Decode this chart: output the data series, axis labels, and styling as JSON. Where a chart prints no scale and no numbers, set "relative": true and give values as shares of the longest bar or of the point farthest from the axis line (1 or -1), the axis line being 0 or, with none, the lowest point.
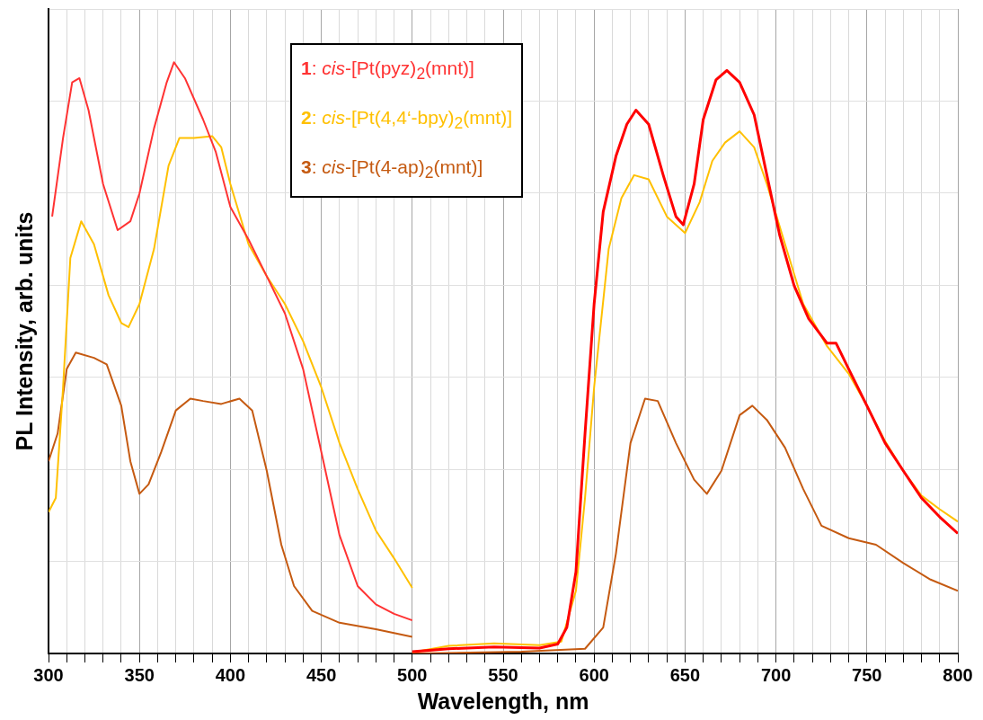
{
  "chart_data": {
    "type": "line",
    "relative": true,
    "xlabel": "Wavelength, nm",
    "ylabel": "PL Intensity, arb. units",
    "xlim": [
      300,
      800
    ],
    "xticks": [
      300,
      {
        "value": 310,
        "label": null
      },
      {
        "value": 320,
        "label": null
      },
      {
        "value": 330,
        "label": null
      },
      {
        "value": 340,
        "label": null
      },
      350,
      {
        "value": 360,
        "label": null
      },
      {
        "value": 370,
        "label": null
      },
      {
        "value": 380,
        "label": null
      },
      {
        "value": 390,
        "label": null
      },
      400,
      {
        "value": 410,
        "label": null
      },
      {
        "value": 420,
        "label": null
      },
      {
        "value": 430,
        "label": null
      },
      {
        "value": 440,
        "label": null
      },
      450,
      {
        "value": 460,
        "label": null
      },
      {
        "value": 470,
        "label": null
      },
      {
        "value": 480,
        "label": null
      },
      {
        "value": 490,
        "label": null
      },
      500,
      {
        "value": 510,
        "label": null
      },
      {
        "value": 520,
        "label": null
      },
      {
        "value": 530,
        "label": null
      },
      {
        "value": 540,
        "label": null
      },
      550,
      {
        "value": 560,
        "label": null
      },
      {
        "value": 570,
        "label": null
      },
      {
        "value": 580,
        "label": null
      },
      {
        "value": 590,
        "label": null
      },
      600,
      {
        "value": 610,
        "label": null
      },
      {
        "value": 620,
        "label": null
      },
      {
        "value": 630,
        "label": null
      },
      {
        "value": 640,
        "label": null
      },
      650,
      {
        "value": 660,
        "label": null
      },
      {
        "value": 670,
        "label": null
      },
      {
        "value": 680,
        "label": null
      },
      {
        "value": 690,
        "label": null
      },
      700,
      {
        "value": 710,
        "label": null
      },
      {
        "value": 720,
        "label": null
      },
      {
        "value": 730,
        "label": null
      },
      {
        "value": 740,
        "label": null
      },
      750,
      {
        "value": 760,
        "label": null
      },
      {
        "value": 770,
        "label": null
      },
      {
        "value": 780,
        "label": null
      },
      {
        "value": 790,
        "label": null
      },
      800
    ],
    "tick_labels": "x",
    "grid": true,
    "legend": "top",
    "marker": "none",
    "line_style": "solid",
    "series": [
      {
        "name": "1: cis-[Pt(pyz)$_{2}$(mnt)]",
        "color": "#ff3333",
        "x": [
          302,
          308,
          313,
          317,
          322,
          330,
          338,
          345,
          350,
          358,
          365,
          369,
          375,
          385,
          392,
          400,
          410,
          420,
          430,
          440,
          450,
          460,
          470,
          480,
          490,
          500
        ],
        "values": [
          0.739,
          0.872,
          0.966,
          0.973,
          0.919,
          0.794,
          0.716,
          0.731,
          0.778,
          0.888,
          0.966,
          1.0,
          0.973,
          0.903,
          0.848,
          0.755,
          0.7,
          0.638,
          0.575,
          0.481,
          0.341,
          0.2,
          0.114,
          0.083,
          0.067,
          0.056
        ]
      },
      {
        "name": "2: cis-[Pt(4,4‘-bpy)$_{2}$(mnt)]",
        "color": "#ffc000",
        "x": [
          300,
          304,
          308,
          312,
          318,
          325,
          333,
          340,
          344,
          350,
          358,
          366,
          372,
          380,
          390,
          395,
          400,
          410,
          420,
          430,
          440,
          450,
          460,
          470,
          480,
          490,
          500
        ],
        "values": [
          0.239,
          0.263,
          0.45,
          0.669,
          0.731,
          0.692,
          0.606,
          0.559,
          0.552,
          0.591,
          0.684,
          0.825,
          0.872,
          0.872,
          0.875,
          0.856,
          0.794,
          0.692,
          0.638,
          0.591,
          0.528,
          0.45,
          0.356,
          0.278,
          0.208,
          0.161,
          0.111
        ]
      },
      {
        "name": "3: cis-[Pt(4-ap)$_{2}$(mnt)]",
        "color": "#c55a11",
        "x": [
          300,
          305,
          310,
          315,
          325,
          332,
          340,
          345,
          350,
          355,
          362,
          370,
          378,
          385,
          395,
          405,
          412,
          420,
          428,
          435,
          445,
          460,
          480,
          500
        ],
        "values": [
          0.325,
          0.372,
          0.481,
          0.509,
          0.5,
          0.489,
          0.419,
          0.325,
          0.27,
          0.286,
          0.341,
          0.411,
          0.431,
          0.427,
          0.422,
          0.431,
          0.411,
          0.309,
          0.184,
          0.114,
          0.072,
          0.052,
          0.041,
          0.028
        ]
      },
      {
        "color": "#ff0000",
        "x": [
          500,
          520,
          545,
          570,
          580,
          585,
          590,
          595,
          600,
          605,
          612,
          618,
          623,
          630,
          638,
          645,
          649,
          655,
          660,
          667,
          673,
          680,
          688,
          695,
          702,
          710,
          718,
          728,
          733,
          740,
          750,
          760,
          770,
          780,
          790,
          800
        ],
        "values": [
          0.003,
          0.008,
          0.011,
          0.009,
          0.016,
          0.044,
          0.138,
          0.372,
          0.591,
          0.747,
          0.841,
          0.895,
          0.919,
          0.895,
          0.809,
          0.739,
          0.725,
          0.794,
          0.903,
          0.97,
          0.986,
          0.966,
          0.911,
          0.809,
          0.708,
          0.622,
          0.566,
          0.525,
          0.525,
          0.481,
          0.419,
          0.356,
          0.309,
          0.263,
          0.231,
          0.203
        ]
      },
      {
        "color": "#ffc000",
        "x": [
          500,
          520,
          545,
          570,
          582,
          590,
          595,
          600,
          608,
          615,
          622,
          630,
          640,
          650,
          658,
          665,
          672,
          680,
          688,
          695,
          705,
          715,
          728,
          740,
          750,
          760,
          770,
          780,
          790,
          800
        ],
        "values": [
          0.002,
          0.013,
          0.017,
          0.014,
          0.02,
          0.106,
          0.263,
          0.45,
          0.684,
          0.77,
          0.809,
          0.802,
          0.739,
          0.711,
          0.763,
          0.833,
          0.864,
          0.883,
          0.856,
          0.794,
          0.692,
          0.591,
          0.52,
          0.473,
          0.419,
          0.359,
          0.309,
          0.267,
          0.244,
          0.223
        ]
      },
      {
        "color": "#c55a11",
        "x": [
          500,
          560,
          595,
          605,
          612,
          620,
          628,
          635,
          645,
          655,
          662,
          670,
          680,
          687,
          695,
          705,
          715,
          725,
          740,
          755,
          770,
          785,
          800
        ],
        "values": [
          0,
          0.003,
          0.008,
          0.044,
          0.169,
          0.356,
          0.431,
          0.427,
          0.356,
          0.294,
          0.27,
          0.309,
          0.403,
          0.419,
          0.395,
          0.348,
          0.278,
          0.216,
          0.195,
          0.184,
          0.153,
          0.125,
          0.106
        ]
      }
    ]
  }
}
